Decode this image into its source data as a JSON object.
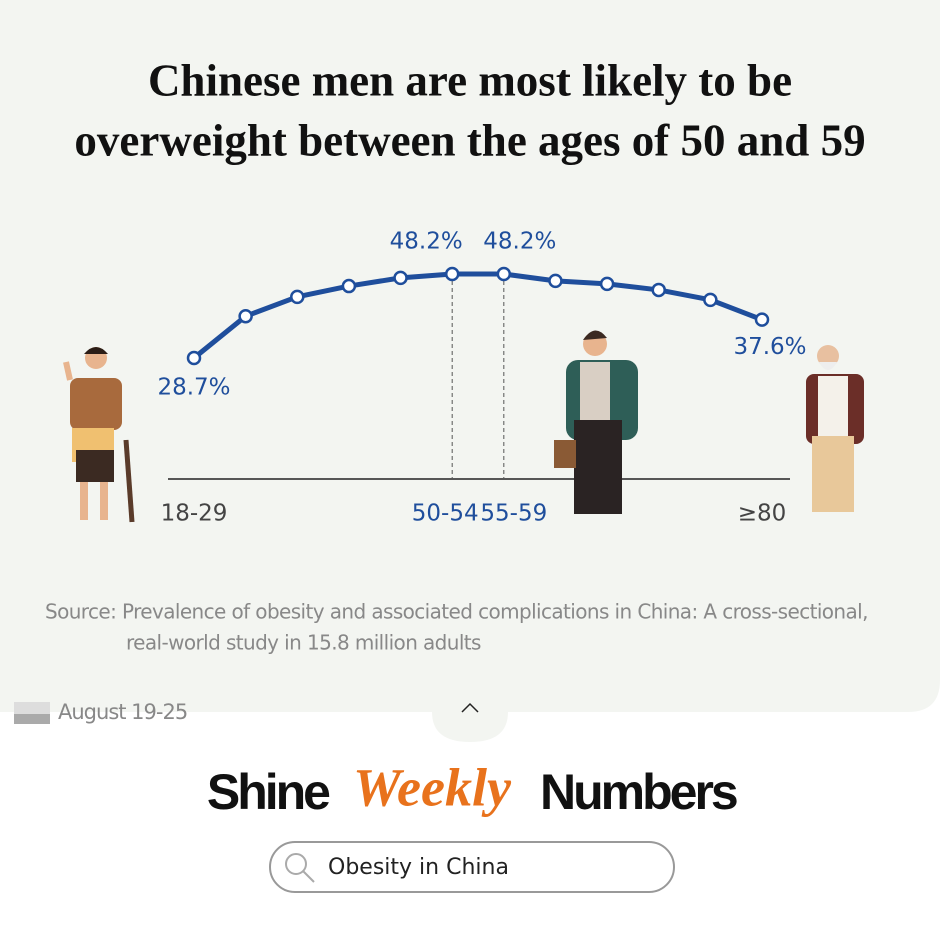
{
  "chart_data": {
    "type": "line",
    "title_lines": [
      "Chinese men are most likely to be",
      "overweight between the ages of 50 and 59"
    ],
    "categories": [
      "18-29",
      null,
      null,
      null,
      null,
      "50-54",
      "55-59",
      null,
      null,
      null,
      null,
      "≥80"
    ],
    "series": [
      {
        "color": "#1f4e9c",
        "values": [
          28.7,
          38.4,
          42.9,
          45.4,
          47.3,
          48.2,
          48.2,
          46.6,
          45.9,
          44.5,
          42.2,
          37.6
        ],
        "value_labels": [
          "28.7%",
          null,
          null,
          null,
          null,
          "48.2%",
          "48.2%",
          null,
          null,
          null,
          null,
          "37.6%"
        ]
      }
    ]
  },
  "source_lines": [
    "Source: Prevalence of obesity and associated complications in China: A cross-sectional,",
    "real-world study in 15.8 million adults"
  ],
  "date": "August 19-25",
  "brand": {
    "left": "Shine",
    "middle": "Weekly",
    "right": "Numbers"
  },
  "search": "Obesity in China"
}
